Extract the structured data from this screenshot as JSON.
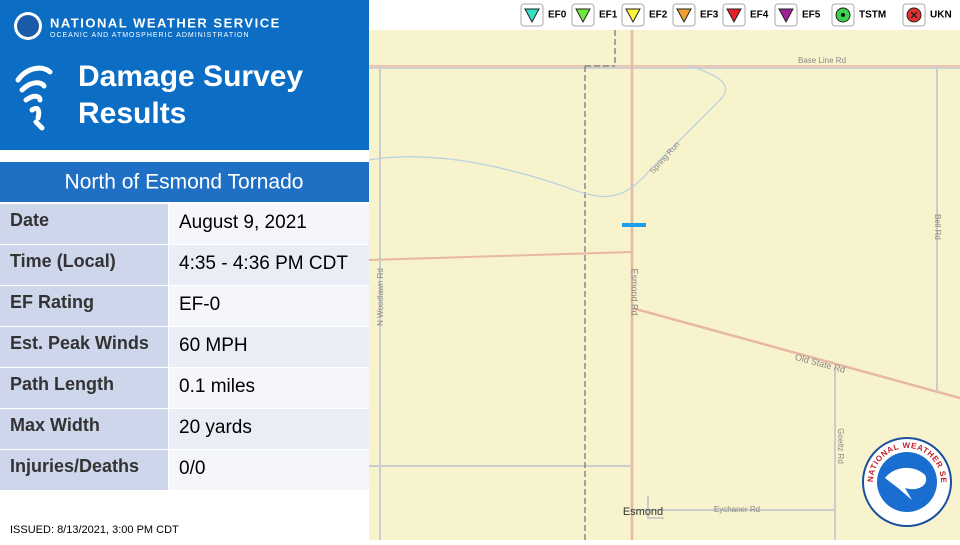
{
  "header": {
    "org": "NATIONAL WEATHER SERVICE",
    "org_sub": "OCEANIC AND ATMOSPHERIC ADMINISTRATION",
    "title": [
      "Damage Survey",
      "Results"
    ]
  },
  "event": {
    "title": "North of Esmond Tornado",
    "rows": [
      [
        "Date",
        "August 9, 2021"
      ],
      [
        "Time (Local)",
        "4:35 - 4:36 PM CDT"
      ],
      [
        "EF Rating",
        "EF-0"
      ],
      [
        "Est. Peak Winds",
        "60 MPH"
      ],
      [
        "Path Length",
        "0.1 miles"
      ],
      [
        "Max Width",
        "20 yards"
      ],
      [
        "Injuries/Deaths",
        "0/0"
      ]
    ]
  },
  "issued": "ISSUED: 8/13/2021, 3:00 PM CDT",
  "legend": [
    {
      "label": "EF0",
      "color": "#33e0c4",
      "shape": "triangle"
    },
    {
      "label": "EF1",
      "color": "#6ee83a",
      "shape": "triangle"
    },
    {
      "label": "EF2",
      "color": "#fff23a",
      "shape": "triangle"
    },
    {
      "label": "EF3",
      "color": "#f0a030",
      "shape": "triangle"
    },
    {
      "label": "EF4",
      "color": "#e8202a",
      "shape": "triangle"
    },
    {
      "label": "EF5",
      "color": "#a0209a",
      "shape": "triangle"
    },
    {
      "label": "TSTM",
      "color": "#3ad24a",
      "shape": "dot"
    },
    {
      "label": "UKN",
      "color": "#e83030",
      "shape": "cross"
    }
  ],
  "map": {
    "labels": [
      "Base Line Rd",
      "Spring Run",
      "Bell Rd",
      "N Woodlawn Rd",
      "Esmond Rd",
      "Old State Rd",
      "Goeltz Rd",
      "Eychaner Rd",
      "Esmond"
    ]
  },
  "logo": {
    "text": "NATIONAL WEATHER SERVICE"
  }
}
